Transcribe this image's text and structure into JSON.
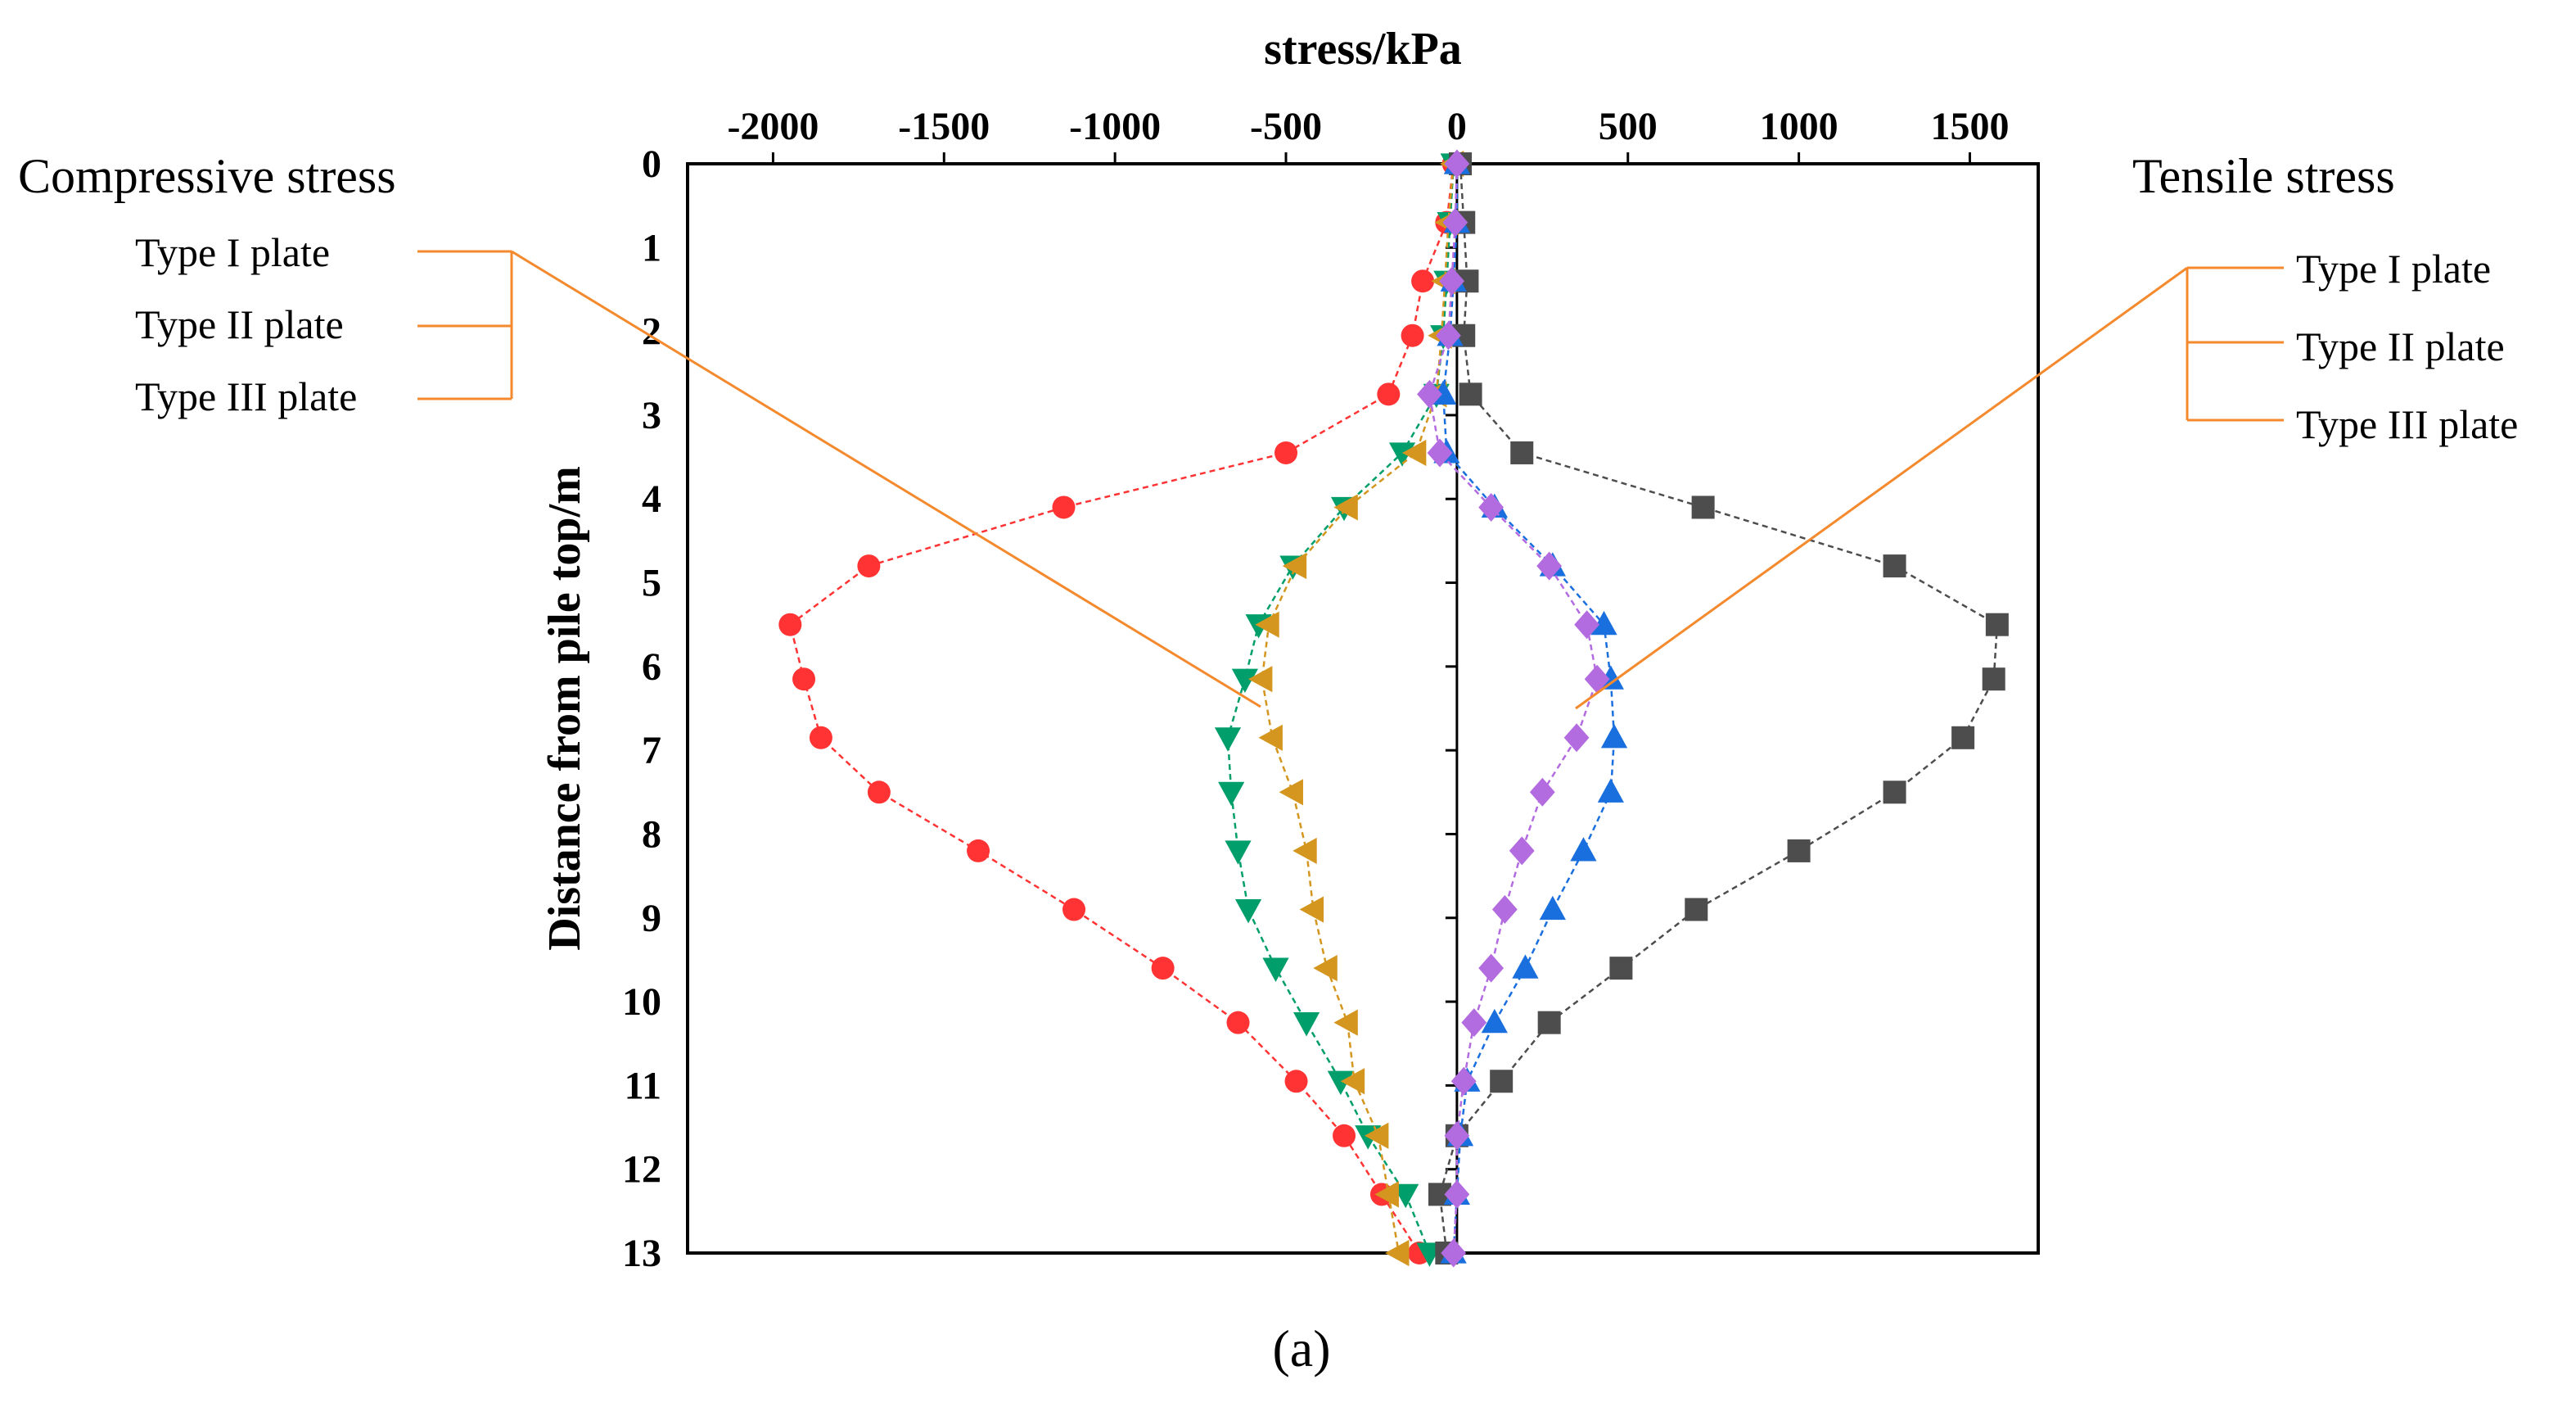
{
  "chart_data": {
    "type": "line",
    "panel_label": "(a)",
    "xlabel": "stress/kPa",
    "ylabel": "Distance from pile top/m",
    "xlim": [
      -2250,
      1700
    ],
    "ylim": [
      0,
      13
    ],
    "x_ticks": [
      -2000,
      -1500,
      -1000,
      -500,
      0,
      500,
      1000,
      1500
    ],
    "y_ticks": [
      0,
      1,
      2,
      3,
      4,
      5,
      6,
      7,
      8,
      9,
      10,
      11,
      12,
      13
    ],
    "grid": false,
    "axis_position": "x-axis on top, y-axis inverted (depth increasing downward)",
    "legend": {
      "compressive": {
        "title": "Compressive stress",
        "items": [
          "Type I plate",
          "Type II plate",
          "Type III plate"
        ]
      },
      "tensile": {
        "title": "Tensile stress",
        "items": [
          "Type I plate",
          "Type II plate",
          "Type III plate"
        ]
      }
    },
    "series": [
      {
        "name": "Compressive stress - Type I plate",
        "color": "#ff3333",
        "marker": "circle",
        "y": [
          0,
          0.7,
          1.4,
          2.05,
          2.75,
          3.45,
          4.1,
          4.8,
          5.5,
          6.15,
          6.85,
          7.5,
          8.2,
          8.9,
          9.6,
          10.25,
          10.95,
          11.6,
          12.3,
          13
        ],
        "x": [
          -10,
          -30,
          -100,
          -130,
          -200,
          -500,
          -1150,
          -1720,
          -1950,
          -1910,
          -1860,
          -1690,
          -1400,
          -1120,
          -860,
          -640,
          -470,
          -330,
          -220,
          -110
        ]
      },
      {
        "name": "Compressive stress - Type II plate",
        "color": "#009e6b",
        "marker": "triangle-down",
        "y": [
          0,
          0.7,
          1.4,
          2.05,
          2.75,
          3.45,
          4.1,
          4.8,
          5.5,
          6.15,
          6.85,
          7.5,
          8.2,
          8.9,
          9.6,
          10.25,
          10.95,
          11.6,
          12.3,
          13
        ],
        "x": [
          -10,
          -20,
          -30,
          -40,
          -60,
          -160,
          -330,
          -480,
          -580,
          -620,
          -670,
          -660,
          -640,
          -610,
          -530,
          -440,
          -340,
          -260,
          -150,
          -80
        ]
      },
      {
        "name": "Compressive stress - Type III plate",
        "color": "#d4961e",
        "marker": "triangle-left",
        "y": [
          0,
          0.7,
          1.4,
          2.05,
          2.75,
          3.45,
          4.1,
          4.8,
          5.5,
          6.15,
          6.85,
          7.5,
          8.2,
          8.9,
          9.6,
          10.25,
          10.95,
          11.6,
          12.3,
          13
        ],
        "x": [
          -10,
          -25,
          -35,
          -45,
          -60,
          -120,
          -320,
          -470,
          -550,
          -570,
          -540,
          -480,
          -440,
          -420,
          -380,
          -320,
          -300,
          -230,
          -200,
          -170
        ]
      },
      {
        "name": "Tensile stress - Type I plate",
        "color": "#4d4d4d",
        "marker": "square",
        "y": [
          0,
          0.7,
          1.4,
          2.05,
          2.75,
          3.45,
          4.1,
          4.8,
          5.5,
          6.15,
          6.85,
          7.5,
          8.2,
          8.9,
          9.6,
          10.25,
          10.95,
          11.6,
          12.3,
          13
        ],
        "x": [
          10,
          20,
          30,
          20,
          40,
          190,
          720,
          1280,
          1580,
          1570,
          1480,
          1280,
          1000,
          700,
          480,
          270,
          130,
          0,
          -50,
          -30
        ]
      },
      {
        "name": "Tensile stress - Type II plate",
        "color": "#1a6fdf",
        "marker": "triangle-up",
        "y": [
          0,
          0.7,
          1.4,
          2.05,
          2.75,
          3.45,
          4.1,
          4.8,
          5.5,
          6.15,
          6.85,
          7.5,
          8.2,
          8.9,
          9.6,
          10.25,
          10.95,
          11.6,
          12.3,
          13
        ],
        "x": [
          0,
          0,
          -10,
          -20,
          -40,
          -30,
          110,
          280,
          430,
          450,
          460,
          450,
          370,
          280,
          200,
          110,
          30,
          10,
          0,
          -10
        ]
      },
      {
        "name": "Tensile stress - Type III plate",
        "color": "#b36be0",
        "marker": "diamond",
        "y": [
          0,
          0.7,
          1.4,
          2.05,
          2.75,
          3.45,
          4.1,
          4.8,
          5.5,
          6.15,
          6.85,
          7.5,
          8.2,
          8.9,
          9.6,
          10.25,
          10.95,
          11.6,
          12.3,
          13
        ],
        "x": [
          0,
          -5,
          -15,
          -25,
          -80,
          -50,
          100,
          270,
          380,
          410,
          350,
          250,
          190,
          140,
          100,
          50,
          20,
          0,
          0,
          -10
        ]
      }
    ]
  }
}
